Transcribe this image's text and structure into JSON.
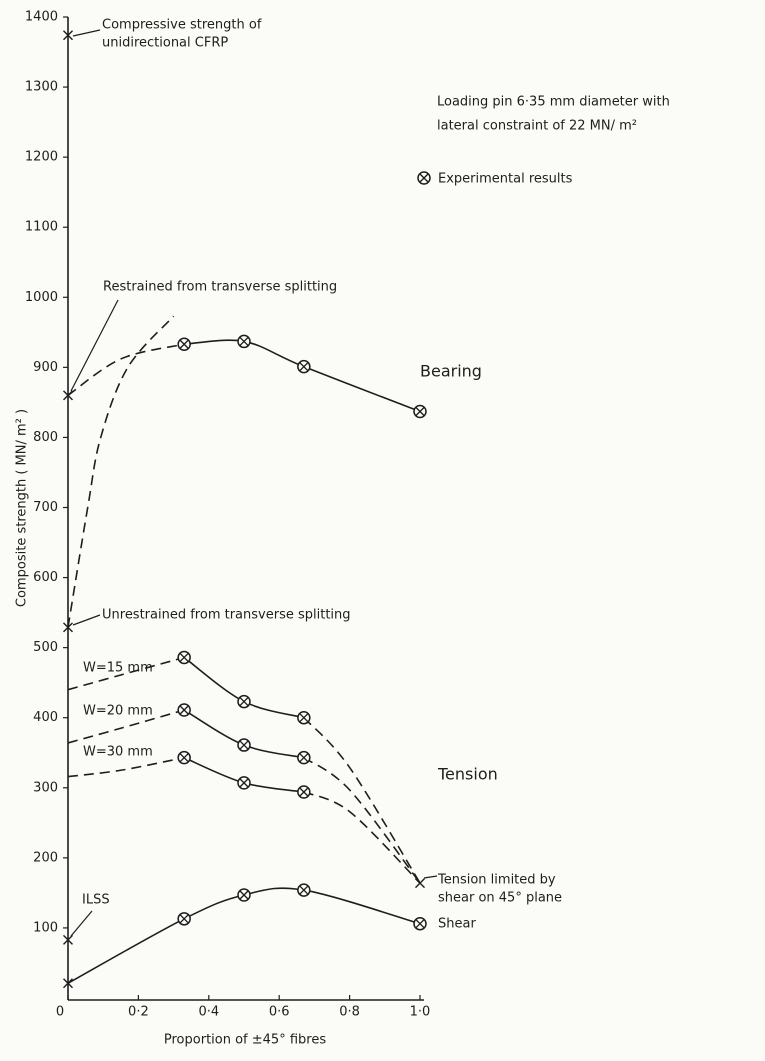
{
  "chart_data": {
    "type": "line",
    "color": "#1e1e1e",
    "xlabel": "Proportion of ±45° fibres",
    "ylabel": "Composite strength ( MN/ m² )",
    "xlim": [
      0,
      1.0
    ],
    "ylim": [
      0,
      1400
    ],
    "xticks": [
      0,
      {
        "value": 0.2,
        "label": "0·2"
      },
      {
        "value": 0.4,
        "label": "0·4"
      },
      {
        "value": 0.6,
        "label": "0·6"
      },
      {
        "value": 0.8,
        "label": "0·8"
      },
      {
        "value": 1.0,
        "label": "1·0"
      }
    ],
    "yticks": [
      100,
      200,
      300,
      400,
      500,
      600,
      700,
      800,
      900,
      1000,
      1100,
      1200,
      1300,
      1400
    ],
    "grid": false,
    "key": "Experimental results",
    "notes": [
      {
        "lines": [
          "Loading pin 6·35 mm diameter with",
          "lateral constraint of 22 MN/ m²"
        ]
      },
      {
        "lines": [
          "Tension"
        ]
      }
    ],
    "annotations": [
      {
        "lines": [
          "Compressive strength of",
          "unidirectional CFRP"
        ],
        "x": 0,
        "value": 1374
      },
      {
        "lines": [
          "Restrained from transverse splitting"
        ],
        "x": 0,
        "value": 860
      },
      {
        "lines": [
          "Unrestrained from transverse splitting"
        ],
        "x": 0,
        "value": 529
      },
      {
        "lines": [
          "ILSS"
        ],
        "x": 0,
        "value": 83
      },
      {
        "lines": [
          "Tension limited by",
          "shear on 45° plane"
        ],
        "x": 1.0,
        "value": 164
      }
    ],
    "series": [
      {
        "x": [
          0,
          0.15,
          0.33
        ],
        "values": [
          860,
          912,
          933
        ],
        "dashed": true
      },
      {
        "name": "Bearing",
        "x": [
          0.33,
          0.5,
          0.67,
          1.0
        ],
        "values": [
          933,
          937,
          901,
          837
        ],
        "dashed": false,
        "markers": [
          "otimes",
          "otimes",
          "otimes",
          "otimes"
        ]
      },
      {
        "x": [
          0,
          0.056,
          0.093,
          0.17,
          0.3
        ],
        "values": [
          529,
          700,
          800,
          900,
          973
        ],
        "dashed": true
      },
      {
        "x": [
          0,
          0.15,
          0.33
        ],
        "values": [
          440,
          461,
          486
        ],
        "dashed": true
      },
      {
        "name": "W=15 mm",
        "x": [
          0.33,
          0.5,
          0.67
        ],
        "values": [
          486,
          423,
          400
        ],
        "dashed": false,
        "markers": [
          "otimes",
          "otimes",
          "otimes"
        ]
      },
      {
        "x": [
          0.67,
          0.8,
          1.0
        ],
        "values": [
          400,
          329,
          164
        ],
        "dashed": true
      },
      {
        "x": [
          0,
          0.15,
          0.33
        ],
        "values": [
          364,
          385,
          411
        ],
        "dashed": true
      },
      {
        "name": "W=20 mm",
        "x": [
          0.33,
          0.5,
          0.67
        ],
        "values": [
          411,
          361,
          343
        ],
        "dashed": false,
        "markers": [
          "otimes",
          "otimes",
          "otimes"
        ]
      },
      {
        "x": [
          0.67,
          0.8,
          1.0
        ],
        "values": [
          343,
          297,
          164
        ],
        "dashed": true
      },
      {
        "x": [
          0,
          0.15,
          0.33
        ],
        "values": [
          316,
          325,
          343
        ],
        "dashed": true
      },
      {
        "name": "W=30 mm",
        "x": [
          0.33,
          0.5,
          0.67
        ],
        "values": [
          343,
          307,
          294
        ],
        "dashed": false,
        "markers": [
          "otimes",
          "otimes",
          "otimes"
        ]
      },
      {
        "x": [
          0.67,
          0.8,
          1.0
        ],
        "values": [
          294,
          266,
          164
        ],
        "dashed": true
      },
      {
        "name": "Shear",
        "x": [
          0,
          0.33,
          0.5,
          0.67,
          1.0
        ],
        "values": [
          21,
          113,
          147,
          154,
          106
        ],
        "dashed": false,
        "markers": [
          "x",
          "otimes",
          "otimes",
          "otimes",
          "otimes"
        ]
      }
    ]
  }
}
